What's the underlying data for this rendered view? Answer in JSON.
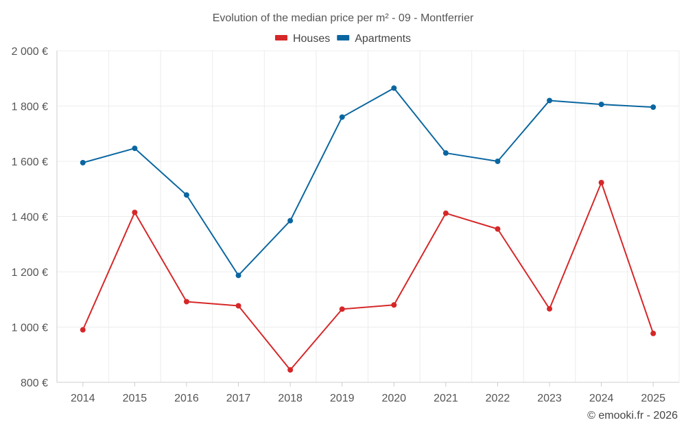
{
  "chart_data": {
    "type": "line",
    "title": "Evolution of the median price per m² - 09 - Montferrier",
    "categories": [
      "2014",
      "2015",
      "2016",
      "2017",
      "2018",
      "2019",
      "2020",
      "2021",
      "2022",
      "2023",
      "2024",
      "2025"
    ],
    "ylim": [
      800,
      2000
    ],
    "yticks": [
      800,
      1000,
      1200,
      1400,
      1600,
      1800,
      2000
    ],
    "ytick_labels": [
      "800 €",
      "1 000 €",
      "1 200 €",
      "1 400 €",
      "1 600 €",
      "1 800 €",
      "2 000 €"
    ],
    "grid": true,
    "legend_position": "top-center",
    "series": [
      {
        "name": "Houses",
        "color": "#d62728",
        "values": [
          990,
          1415,
          1092,
          1077,
          845,
          1065,
          1080,
          1412,
          1355,
          1066,
          1523,
          977
        ]
      },
      {
        "name": "Apartments",
        "color": "#0a66a0",
        "values": [
          1595,
          1647,
          1478,
          1187,
          1385,
          1760,
          1865,
          1630,
          1600,
          1820,
          1806,
          1796
        ]
      }
    ]
  },
  "footer": {
    "credit": "© emooki.fr - 2026"
  }
}
